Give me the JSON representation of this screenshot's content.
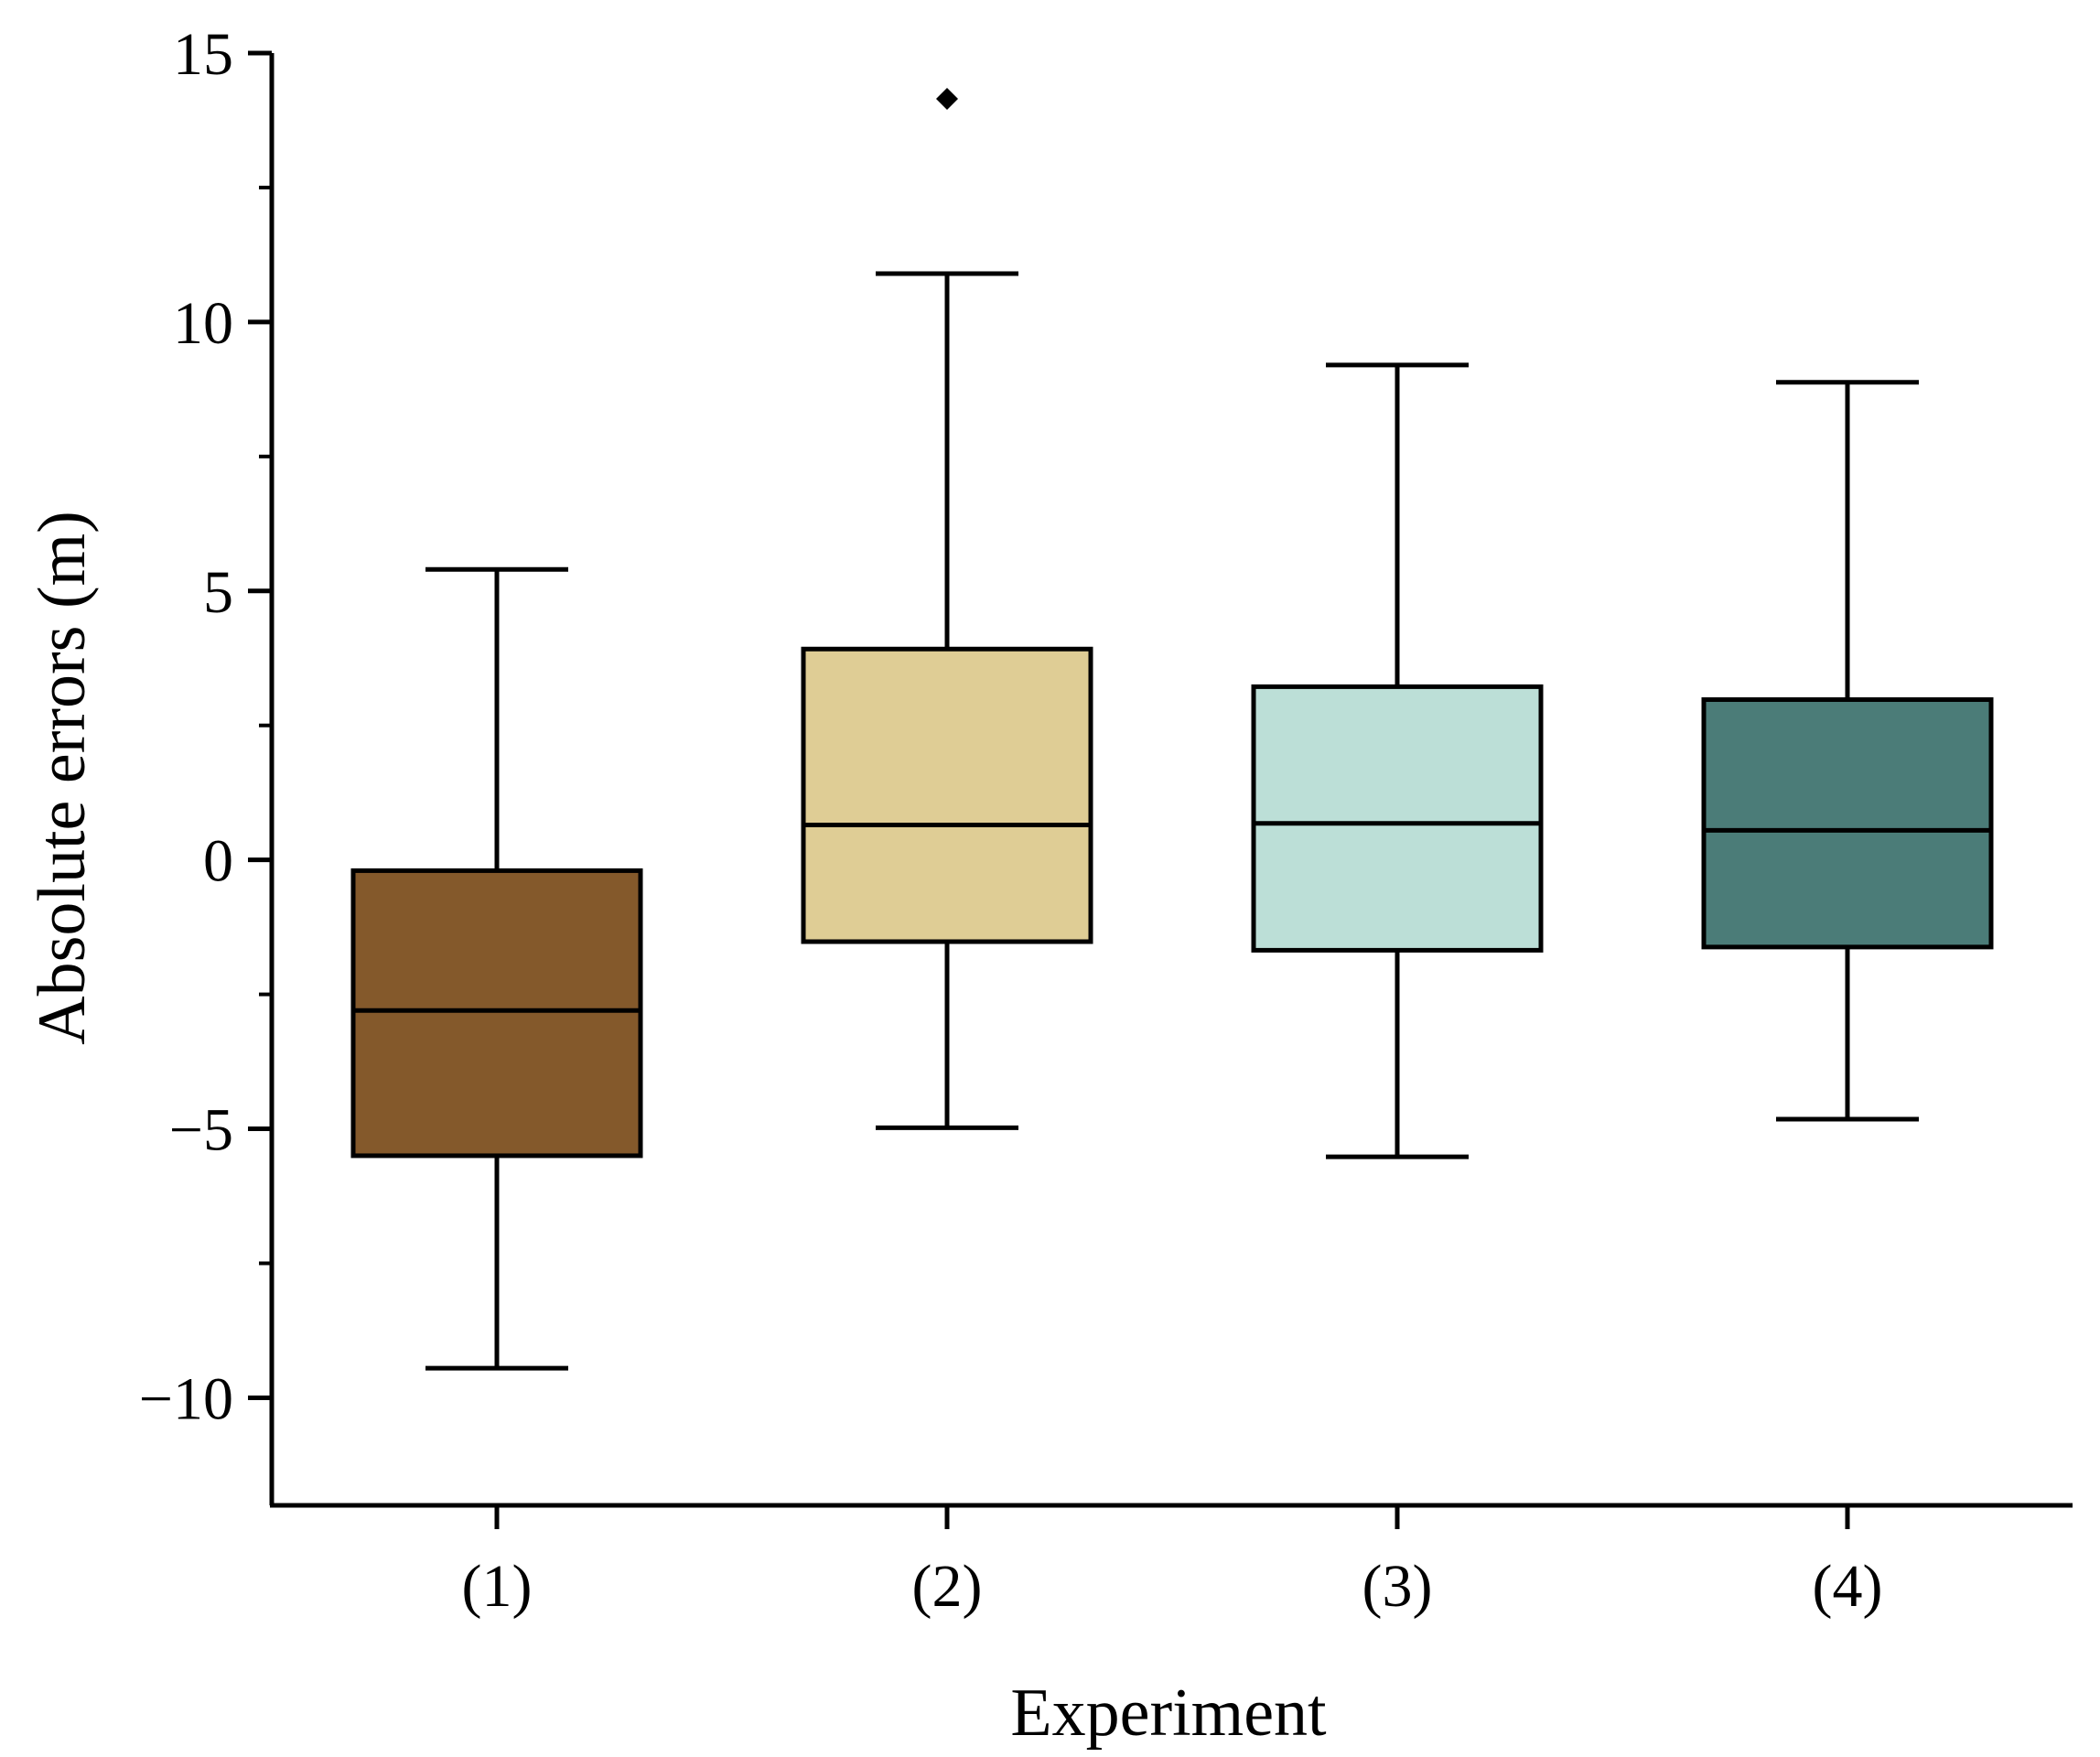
{
  "chart_data": {
    "type": "box",
    "xlabel": "Experiment",
    "ylabel": "Absolute errors (m)",
    "ylim": [
      -12,
      15
    ],
    "yticks": [
      -10,
      -5,
      0,
      5,
      10,
      15
    ],
    "ytick_labels": [
      "−10",
      "−5",
      "0",
      "5",
      "10",
      "15"
    ],
    "minor_yticks": [
      -7.5,
      -2.5,
      2.5,
      7.5,
      12.5
    ],
    "categories": [
      "(1)",
      "(2)",
      "(3)",
      "(4)"
    ],
    "boxes": [
      {
        "name": "(1)",
        "whisker_low": -9.45,
        "q1": -5.5,
        "median": -2.8,
        "q3": -0.2,
        "whisker_high": 5.4,
        "outliers": [],
        "color": "#84592B"
      },
      {
        "name": "(2)",
        "whisker_low": -4.98,
        "q1": -1.52,
        "median": 0.65,
        "q3": 3.92,
        "whisker_high": 10.9,
        "outliers": [
          14.15
        ],
        "color": "#DFCD95"
      },
      {
        "name": "(3)",
        "whisker_low": -5.52,
        "q1": -1.68,
        "median": 0.68,
        "q3": 3.22,
        "whisker_high": 9.2,
        "outliers": [],
        "color": "#BCDFD7"
      },
      {
        "name": "(4)",
        "whisker_low": -4.82,
        "q1": -1.62,
        "median": 0.55,
        "q3": 2.98,
        "whisker_high": 8.88,
        "outliers": [],
        "color": "#4B7C78"
      }
    ]
  }
}
